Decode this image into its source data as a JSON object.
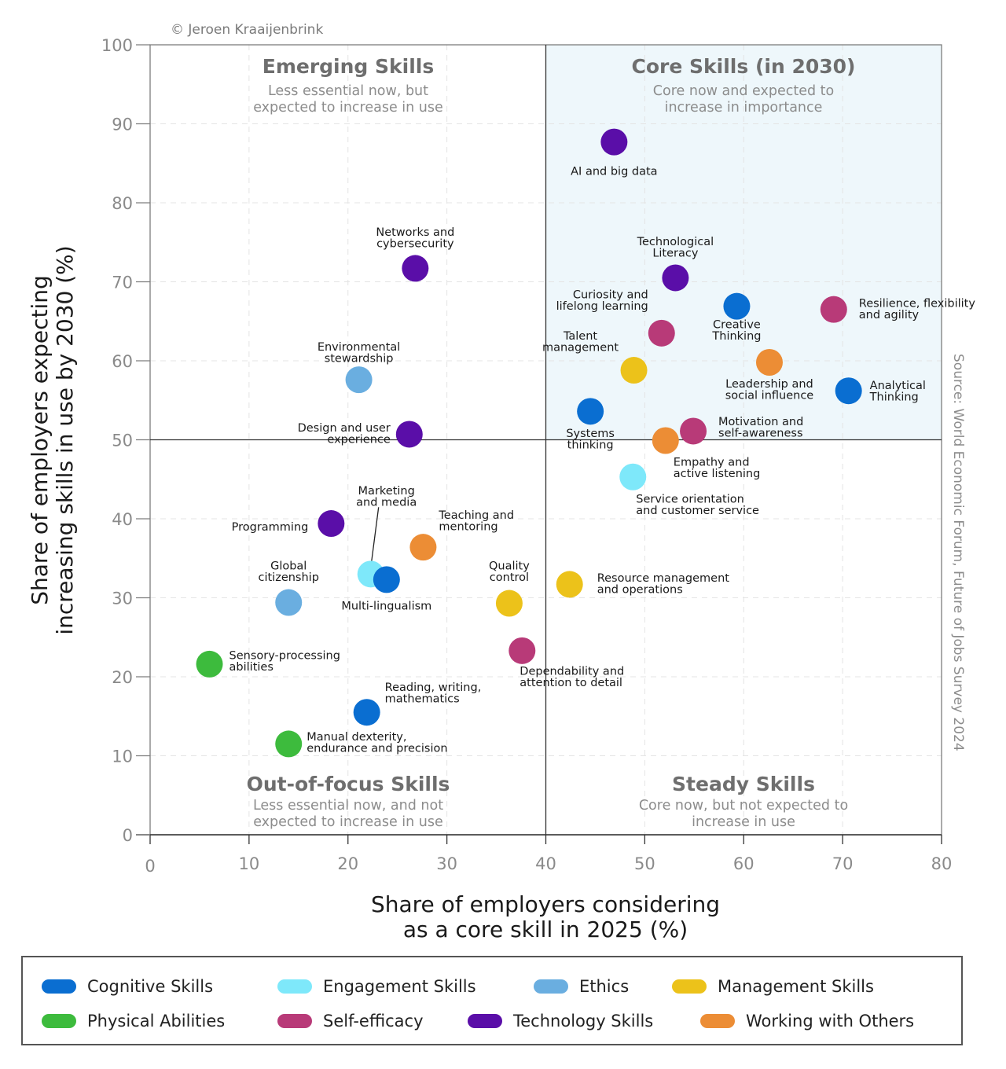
{
  "copyright": "© Jeroen Kraaijenbrink",
  "source": "Source: World Economic Forum, Future of Jobs Survey 2024",
  "colors": {
    "cognitive": "#0a6ed1",
    "engagement": "#7ee8fa",
    "ethics": "#6aaee0",
    "management": "#ecc21a",
    "physical": "#3dbb3d",
    "self_efficacy": "#b83a78",
    "technology": "#5a0ea8",
    "working": "#ec8d35",
    "core_quadrant_bg": "#eef7fb"
  },
  "quadrants": [
    {
      "title": "Emerging Skills",
      "subtitle": [
        "Less essential now, but",
        "expected to increase in use"
      ]
    },
    {
      "title": "Core Skills (in 2030)",
      "subtitle": [
        "Core now and expected to",
        "increase in importance"
      ]
    },
    {
      "title": "Out-of-focus Skills",
      "subtitle": [
        "Less essential now, and not",
        "expected to increase in use"
      ]
    },
    {
      "title": "Steady Skills",
      "subtitle": [
        "Core now, but not expected to",
        "increase in use"
      ]
    }
  ],
  "legend": [
    {
      "label": "Cognitive Skills",
      "color": "#0a6ed1"
    },
    {
      "label": "Engagement Skills",
      "color": "#7ee8fa"
    },
    {
      "label": "Ethics",
      "color": "#6aaee0"
    },
    {
      "label": "Management Skills",
      "color": "#ecc21a"
    },
    {
      "label": "Physical Abilities",
      "color": "#3dbb3d"
    },
    {
      "label": "Self-efficacy",
      "color": "#b83a78"
    },
    {
      "label": "Technology Skills",
      "color": "#5a0ea8"
    },
    {
      "label": "Working with Others",
      "color": "#ec8d35"
    }
  ],
  "chart_data": {
    "type": "scatter",
    "title": "",
    "xlabel": [
      "Share of employers considering",
      "as a core skill in 2025 (%)"
    ],
    "ylabel": [
      "Share of employers expecting",
      "increasing skills in use by 2030 (%)"
    ],
    "xlim": [
      0,
      80
    ],
    "ylim": [
      0,
      100
    ],
    "xticks": [
      0,
      10,
      20,
      30,
      40,
      50,
      60,
      70,
      80
    ],
    "yticks": [
      0,
      10,
      20,
      30,
      40,
      50,
      60,
      70,
      80,
      90,
      100
    ],
    "dividers": {
      "x": 40,
      "y": 50
    },
    "grid": true,
    "legend_position": "bottom",
    "points": [
      {
        "label": [
          "AI and big data"
        ],
        "x": 46.9,
        "y": 87.7,
        "category": "Technology Skills",
        "color": "#5a0ea8"
      },
      {
        "label": [
          "Networks and",
          "cybersecurity"
        ],
        "x": 26.8,
        "y": 71.7,
        "category": "Technology Skills",
        "color": "#5a0ea8"
      },
      {
        "label": [
          "Technological",
          "Literacy"
        ],
        "x": 53.1,
        "y": 70.5,
        "category": "Technology Skills",
        "color": "#5a0ea8"
      },
      {
        "label": [
          "Creative",
          "Thinking"
        ],
        "x": 59.3,
        "y": 66.9,
        "category": "Cognitive Skills",
        "color": "#0a6ed1"
      },
      {
        "label": [
          "Resilience, flexibility",
          "and agility"
        ],
        "x": 69.1,
        "y": 66.5,
        "category": "Self-efficacy",
        "color": "#b83a78"
      },
      {
        "label": [
          "Curiosity and",
          "lifelong learning"
        ],
        "x": 51.7,
        "y": 63.5,
        "category": "Self-efficacy",
        "color": "#b83a78"
      },
      {
        "label": [
          "Talent",
          "management"
        ],
        "x": 48.9,
        "y": 58.8,
        "category": "Management Skills",
        "color": "#ecc21a"
      },
      {
        "label": [
          "Leadership and",
          "social influence"
        ],
        "x": 62.6,
        "y": 59.8,
        "category": "Working with Others",
        "color": "#ec8d35"
      },
      {
        "label": [
          "Environmental",
          "stewardship"
        ],
        "x": 21.1,
        "y": 57.6,
        "category": "Ethics",
        "color": "#6aaee0"
      },
      {
        "label": [
          "Analytical",
          "Thinking"
        ],
        "x": 70.6,
        "y": 56.2,
        "category": "Cognitive Skills",
        "color": "#0a6ed1"
      },
      {
        "label": [
          "Systems",
          "thinking"
        ],
        "x": 44.5,
        "y": 53.6,
        "category": "Cognitive Skills",
        "color": "#0a6ed1"
      },
      {
        "label": [
          "Design and user",
          "experience"
        ],
        "x": 26.2,
        "y": 50.7,
        "category": "Technology Skills",
        "color": "#5a0ea8"
      },
      {
        "label": [
          "Motivation and",
          "self-awareness"
        ],
        "x": 54.9,
        "y": 51.1,
        "category": "Self-efficacy",
        "color": "#b83a78"
      },
      {
        "label": [
          "Empathy and",
          "active listening"
        ],
        "x": 52.1,
        "y": 49.9,
        "category": "Working with Others",
        "color": "#ec8d35"
      },
      {
        "label": [
          "Service orientation",
          "and customer service"
        ],
        "x": 48.8,
        "y": 45.3,
        "category": "Engagement Skills",
        "color": "#7ee8fa"
      },
      {
        "label": [
          "Programming"
        ],
        "x": 18.3,
        "y": 39.4,
        "category": "Technology Skills",
        "color": "#5a0ea8"
      },
      {
        "label": [
          "Teaching and",
          "mentoring"
        ],
        "x": 27.6,
        "y": 36.4,
        "category": "Working with Others",
        "color": "#ec8d35"
      },
      {
        "label": [
          "Marketing",
          "and media"
        ],
        "x": 22.3,
        "y": 33.0,
        "category": "Engagement Skills",
        "color": "#7ee8fa"
      },
      {
        "label": [
          "Multi-lingualism"
        ],
        "x": 23.9,
        "y": 32.3,
        "category": "Cognitive Skills",
        "color": "#0a6ed1"
      },
      {
        "label": [
          "Resource management",
          "and operations"
        ],
        "x": 42.4,
        "y": 31.7,
        "category": "Management Skills",
        "color": "#ecc21a"
      },
      {
        "label": [
          "Global",
          "citizenship"
        ],
        "x": 14.0,
        "y": 29.4,
        "category": "Ethics",
        "color": "#6aaee0"
      },
      {
        "label": [
          "Quality",
          "control"
        ],
        "x": 36.3,
        "y": 29.3,
        "category": "Management Skills",
        "color": "#ecc21a"
      },
      {
        "label": [
          "Dependability and",
          "attention to detail"
        ],
        "x": 37.6,
        "y": 23.3,
        "category": "Self-efficacy",
        "color": "#b83a78"
      },
      {
        "label": [
          "Sensory-processing",
          "abilities"
        ],
        "x": 6.0,
        "y": 21.6,
        "category": "Physical Abilities",
        "color": "#3dbb3d"
      },
      {
        "label": [
          "Reading, writing,",
          "mathematics"
        ],
        "x": 21.9,
        "y": 15.5,
        "category": "Cognitive Skills",
        "color": "#0a6ed1"
      },
      {
        "label": [
          "Manual dexterity,",
          "endurance and precision"
        ],
        "x": 14.0,
        "y": 11.5,
        "category": "Physical Abilities",
        "color": "#3dbb3d"
      }
    ]
  }
}
